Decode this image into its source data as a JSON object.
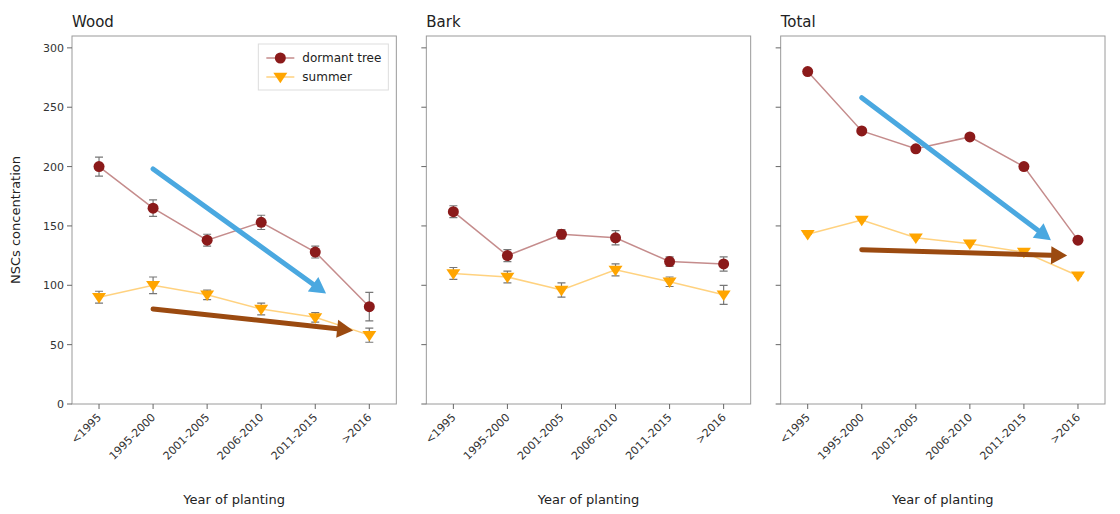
{
  "chart_data": [
    {
      "type": "line",
      "title": "Wood",
      "categories": [
        "<1995",
        "1995-2000",
        "2001-2005",
        "2006-2010",
        "2011-2015",
        ">2016"
      ],
      "xlabel": "Year of planting",
      "ylabel": "NSCs concentration",
      "series": [
        {
          "name": "dormant tree",
          "color": "#8B1A1A",
          "marker": "circle",
          "values": [
            200,
            165,
            138,
            153,
            128,
            82
          ],
          "errors": [
            8,
            7,
            5,
            6,
            5,
            12
          ]
        },
        {
          "name": "summer",
          "color": "#FFA500",
          "marker": "triangle-down",
          "values": [
            90,
            100,
            92,
            80,
            73,
            58
          ],
          "errors": [
            5,
            7,
            4,
            5,
            4,
            6
          ]
        }
      ],
      "ylim": [
        0,
        310
      ],
      "yticks": [
        0,
        50,
        100,
        150,
        200,
        250,
        300
      ],
      "legend": "upper right",
      "arrows": [
        {
          "start": [
            1.0,
            198
          ],
          "end": [
            4.2,
            93
          ],
          "color": "#4AA8E0"
        },
        {
          "start": [
            1.0,
            80
          ],
          "end": [
            4.7,
            62
          ],
          "color": "#9B4A10"
        }
      ]
    },
    {
      "type": "line",
      "title": "Bark",
      "categories": [
        "<1995",
        "1995-2000",
        "2001-2005",
        "2006-2010",
        "2011-2015",
        ">2016"
      ],
      "xlabel": "Year of planting",
      "series": [
        {
          "name": "dormant tree",
          "color": "#8B1A1A",
          "marker": "circle",
          "values": [
            162,
            125,
            143,
            140,
            120,
            118
          ],
          "errors": [
            5,
            5,
            4,
            6,
            4,
            6
          ]
        },
        {
          "name": "summer",
          "color": "#FFA500",
          "marker": "triangle-down",
          "values": [
            110,
            107,
            96,
            113,
            103,
            92
          ],
          "errors": [
            5,
            5,
            6,
            5,
            4,
            8
          ]
        }
      ],
      "ylim": [
        0,
        310
      ],
      "yticks": [
        0,
        50,
        100,
        150,
        200,
        250,
        300
      ],
      "tick_labels": "x"
    },
    {
      "type": "line",
      "title": "Total",
      "categories": [
        "<1995",
        "1995-2000",
        "2001-2005",
        "2006-2010",
        "2011-2015",
        ">2016"
      ],
      "xlabel": "Year of planting",
      "series": [
        {
          "name": "dormant tree",
          "color": "#8B1A1A",
          "marker": "circle",
          "values": [
            280,
            230,
            215,
            225,
            200,
            138
          ],
          "errors": [
            0,
            0,
            0,
            0,
            0,
            0
          ]
        },
        {
          "name": "summer",
          "color": "#FFA500",
          "marker": "triangle-down",
          "values": [
            143,
            155,
            140,
            135,
            128,
            108
          ],
          "errors": [
            0,
            0,
            0,
            0,
            0,
            0
          ]
        }
      ],
      "ylim": [
        0,
        310
      ],
      "yticks": [
        0,
        50,
        100,
        150,
        200,
        250,
        300
      ],
      "tick_labels": "x",
      "arrows": [
        {
          "start": [
            1.0,
            258
          ],
          "end": [
            4.5,
            138
          ],
          "color": "#4AA8E0"
        },
        {
          "start": [
            1.0,
            130
          ],
          "end": [
            4.8,
            125
          ],
          "color": "#9B4A10"
        }
      ]
    }
  ]
}
